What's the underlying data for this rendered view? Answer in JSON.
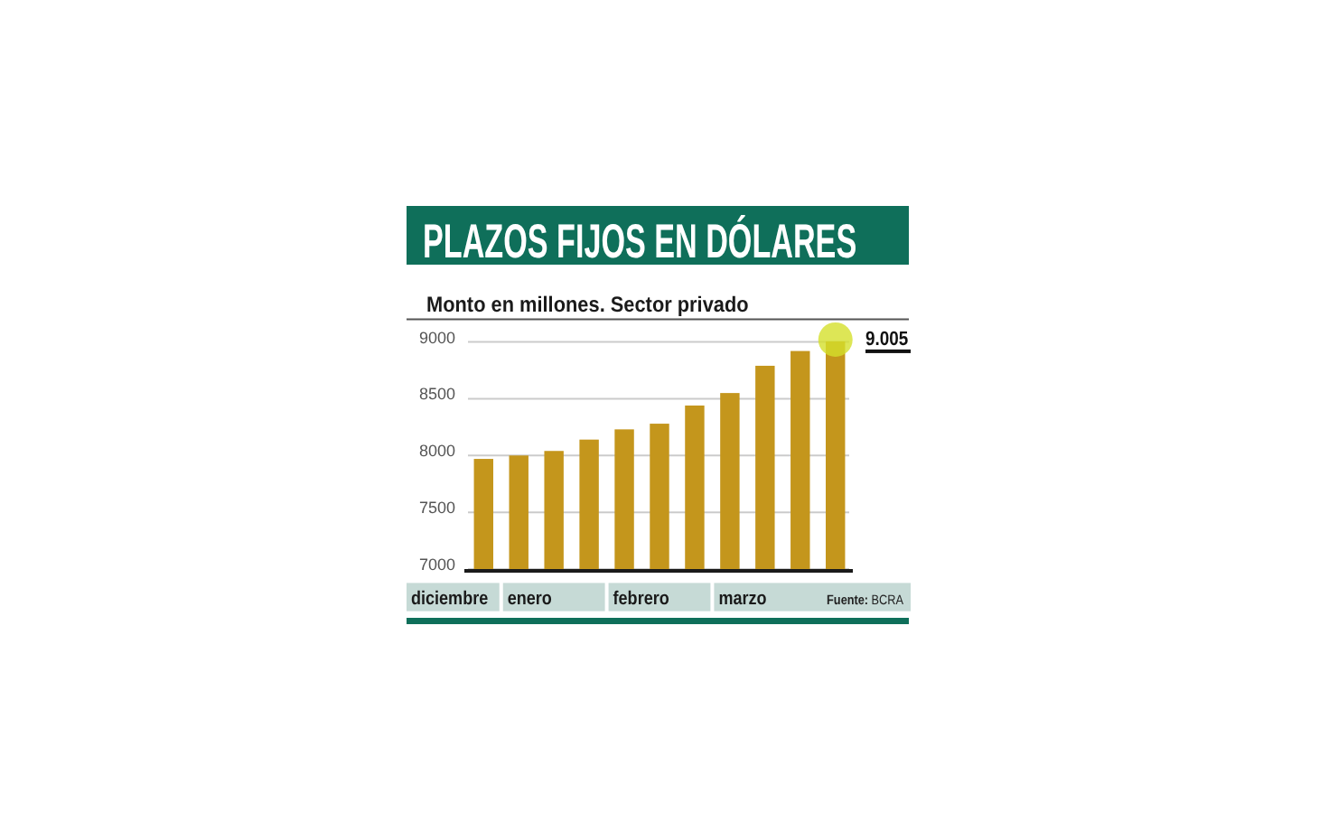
{
  "chart_data": {
    "type": "bar",
    "title": "PLAZOS FIJOS EN DÓLARES",
    "subtitle": "Monto en millones. Sector privado",
    "categories": [
      "diciembre",
      "enero",
      null,
      null,
      "febrero",
      null,
      null,
      "marzo",
      null,
      null,
      null
    ],
    "values": [
      7970,
      8000,
      8040,
      8140,
      8230,
      8280,
      8440,
      8550,
      8790,
      8920,
      9005
    ],
    "color": "#c4961c",
    "ylim": [
      7000,
      9200
    ],
    "yticks": [
      7000,
      7500,
      8000,
      8500,
      9000
    ],
    "grid": "y",
    "annotations": [
      "Fuente: BCRA",
      "9.005"
    ]
  }
}
